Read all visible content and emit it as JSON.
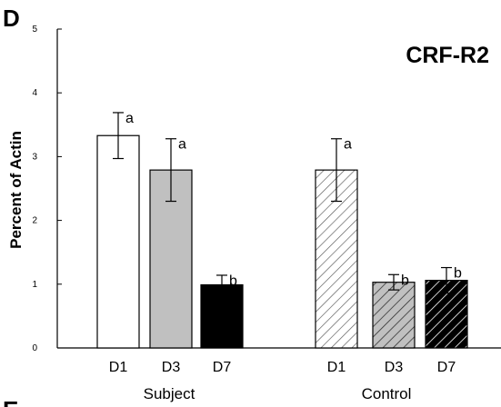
{
  "panel_letter": "D",
  "next_panel_letter": "E",
  "chart_data": {
    "type": "bar",
    "title": "CRF-R2",
    "xlabel": "",
    "ylabel": "Percent of Actin",
    "ylim": [
      0,
      5
    ],
    "yticks": [
      "0",
      "1",
      "2",
      "3",
      "4",
      "5"
    ],
    "groups": [
      "Subject",
      "Control"
    ],
    "bars": [
      {
        "group": "Subject",
        "label": "D1",
        "value": 3.33,
        "error": 0.36,
        "sig": "a",
        "fill": "#ffffff",
        "pattern": "none"
      },
      {
        "group": "Subject",
        "label": "D3",
        "value": 2.79,
        "error": 0.49,
        "sig": "a",
        "fill": "#c0c0c0",
        "pattern": "none"
      },
      {
        "group": "Subject",
        "label": "D7",
        "value": 0.99,
        "error": 0.15,
        "sig": "b",
        "fill": "#000000",
        "pattern": "none"
      },
      {
        "group": "Control",
        "label": "D1",
        "value": 2.79,
        "error": 0.49,
        "sig": "a",
        "fill": "#ffffff",
        "pattern": "hatch"
      },
      {
        "group": "Control",
        "label": "D3",
        "value": 1.03,
        "error": 0.12,
        "sig": "b",
        "fill": "#c0c0c0",
        "pattern": "hatch"
      },
      {
        "group": "Control",
        "label": "D7",
        "value": 1.06,
        "error": 0.2,
        "sig": "b",
        "fill": "#000000",
        "pattern": "hatch"
      }
    ],
    "grid": false,
    "legend": "none"
  }
}
